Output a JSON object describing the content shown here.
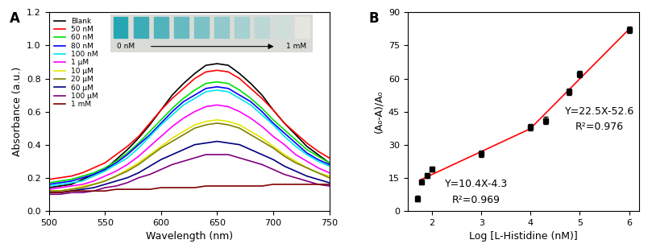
{
  "chart_data": [
    {
      "type": "line",
      "panel": "A",
      "xlabel": "Wavelength (nm)",
      "ylabel": "Absorbance (a.u.)",
      "x": [
        500,
        510,
        520,
        530,
        540,
        550,
        560,
        570,
        580,
        590,
        600,
        610,
        620,
        630,
        640,
        650,
        660,
        670,
        680,
        690,
        700,
        710,
        720,
        730,
        740,
        750
      ],
      "xlim": [
        500,
        750
      ],
      "xticks": [
        500,
        550,
        600,
        650,
        700,
        750
      ],
      "ylim": [
        0.0,
        1.2
      ],
      "yticks": [
        {
          "value": 0.0,
          "label": "0.0"
        },
        {
          "value": 0.2,
          "label": "0.2"
        },
        {
          "value": 0.4,
          "label": "0.4"
        },
        {
          "value": 0.6,
          "label": "0.6"
        },
        {
          "value": 0.8,
          "label": "0.8"
        },
        {
          "value": 1.0,
          "label": "1.0"
        },
        {
          "value": 1.2,
          "label": "1.2"
        }
      ],
      "legend": "upper left",
      "inset": {
        "start_label": "0 nM",
        "end_label": "1 mM"
      },
      "series": [
        {
          "name": "Blank",
          "color": "#000000",
          "values": [
            0.14,
            0.15,
            0.16,
            0.19,
            0.22,
            0.25,
            0.31,
            0.37,
            0.44,
            0.52,
            0.61,
            0.7,
            0.77,
            0.83,
            0.88,
            0.89,
            0.88,
            0.83,
            0.77,
            0.7,
            0.61,
            0.53,
            0.46,
            0.39,
            0.34,
            0.29
          ]
        },
        {
          "name": "50 nM",
          "color": "#ff0000",
          "values": [
            0.19,
            0.2,
            0.21,
            0.23,
            0.26,
            0.29,
            0.34,
            0.39,
            0.45,
            0.53,
            0.61,
            0.68,
            0.74,
            0.8,
            0.84,
            0.85,
            0.84,
            0.8,
            0.74,
            0.68,
            0.61,
            0.53,
            0.47,
            0.41,
            0.36,
            0.32
          ]
        },
        {
          "name": "60 nM",
          "color": "#00e000",
          "values": [
            0.17,
            0.18,
            0.19,
            0.21,
            0.23,
            0.26,
            0.3,
            0.35,
            0.41,
            0.48,
            0.55,
            0.62,
            0.68,
            0.73,
            0.77,
            0.78,
            0.77,
            0.73,
            0.68,
            0.62,
            0.55,
            0.49,
            0.43,
            0.37,
            0.33,
            0.29
          ]
        },
        {
          "name": "80 nM",
          "color": "#0000ff",
          "values": [
            0.16,
            0.17,
            0.18,
            0.2,
            0.22,
            0.25,
            0.29,
            0.34,
            0.4,
            0.46,
            0.53,
            0.6,
            0.66,
            0.7,
            0.74,
            0.75,
            0.74,
            0.7,
            0.66,
            0.6,
            0.53,
            0.47,
            0.41,
            0.35,
            0.31,
            0.28
          ]
        },
        {
          "name": "100 nM",
          "color": "#00e5ee",
          "values": [
            0.15,
            0.16,
            0.17,
            0.18,
            0.21,
            0.24,
            0.28,
            0.32,
            0.38,
            0.45,
            0.52,
            0.58,
            0.64,
            0.68,
            0.72,
            0.73,
            0.72,
            0.68,
            0.64,
            0.58,
            0.52,
            0.45,
            0.39,
            0.34,
            0.3,
            0.27
          ]
        },
        {
          "name": "1 μM",
          "color": "#ff00ff",
          "values": [
            0.13,
            0.14,
            0.15,
            0.16,
            0.18,
            0.21,
            0.24,
            0.28,
            0.33,
            0.39,
            0.45,
            0.51,
            0.56,
            0.6,
            0.63,
            0.64,
            0.63,
            0.6,
            0.56,
            0.51,
            0.45,
            0.4,
            0.34,
            0.3,
            0.26,
            0.23
          ]
        },
        {
          "name": "10 μM",
          "color": "#e6e600",
          "values": [
            0.12,
            0.12,
            0.13,
            0.15,
            0.16,
            0.18,
            0.21,
            0.25,
            0.29,
            0.34,
            0.39,
            0.44,
            0.48,
            0.52,
            0.54,
            0.55,
            0.54,
            0.52,
            0.48,
            0.44,
            0.39,
            0.34,
            0.3,
            0.26,
            0.23,
            0.21
          ]
        },
        {
          "name": "20 μM",
          "color": "#808000",
          "values": [
            0.12,
            0.12,
            0.13,
            0.14,
            0.16,
            0.18,
            0.21,
            0.24,
            0.28,
            0.33,
            0.38,
            0.42,
            0.46,
            0.5,
            0.52,
            0.53,
            0.52,
            0.5,
            0.46,
            0.42,
            0.38,
            0.33,
            0.29,
            0.26,
            0.23,
            0.2
          ]
        },
        {
          "name": "60 μM",
          "color": "#000080",
          "values": [
            0.11,
            0.11,
            0.12,
            0.13,
            0.14,
            0.16,
            0.18,
            0.2,
            0.23,
            0.27,
            0.31,
            0.34,
            0.37,
            0.4,
            0.41,
            0.42,
            0.41,
            0.4,
            0.37,
            0.34,
            0.31,
            0.27,
            0.24,
            0.21,
            0.19,
            0.17
          ]
        },
        {
          "name": "100 μM",
          "color": "#800080",
          "values": [
            0.1,
            0.1,
            0.11,
            0.11,
            0.12,
            0.14,
            0.15,
            0.17,
            0.2,
            0.22,
            0.25,
            0.28,
            0.3,
            0.32,
            0.34,
            0.34,
            0.34,
            0.32,
            0.3,
            0.28,
            0.25,
            0.22,
            0.2,
            0.18,
            0.16,
            0.15
          ]
        },
        {
          "name": "1 mM",
          "color": "#800000",
          "values": [
            0.11,
            0.11,
            0.12,
            0.12,
            0.12,
            0.12,
            0.13,
            0.13,
            0.13,
            0.13,
            0.14,
            0.14,
            0.14,
            0.14,
            0.15,
            0.15,
            0.15,
            0.15,
            0.15,
            0.15,
            0.16,
            0.16,
            0.16,
            0.16,
            0.16,
            0.16
          ]
        }
      ]
    },
    {
      "type": "scatter",
      "panel": "B",
      "xlabel": "Log [L-Histidine (nM)]",
      "ylabel": "(A₀-A)/A₀",
      "x": [
        1.7,
        1.78,
        1.9,
        2.0,
        3.0,
        4.0,
        4.3,
        4.78,
        5.0,
        6.0
      ],
      "values": [
        5.5,
        13,
        16,
        19,
        26,
        38,
        41,
        54,
        62,
        82
      ],
      "errors": [
        1.2,
        1.0,
        1.0,
        1.0,
        1.5,
        1.5,
        1.5,
        1.5,
        1.5,
        1.5
      ],
      "color": "#000000",
      "marker": "square",
      "xlim": [
        1.5,
        6.2
      ],
      "xticks": [
        2,
        3,
        4,
        5,
        6
      ],
      "ylim": [
        0,
        90
      ],
      "yticks": [
        0,
        15,
        30,
        45,
        60,
        75,
        90
      ],
      "fit_lines": [
        {
          "x": [
            1.75,
            4.0
          ],
          "values": [
            13.9,
            37.3
          ],
          "color": "#ff0000"
        },
        {
          "x": [
            4.0,
            6.0
          ],
          "values": [
            37.4,
            82.4
          ],
          "color": "#ff0000"
        }
      ],
      "annotations": [
        {
          "text": "Y=10.4X-4.3",
          "x": 2.9,
          "y": 12
        },
        {
          "text": "R²=0.969",
          "x": 2.9,
          "y": 5
        },
        {
          "text": "Y=22.5X-52.6",
          "x": 5.4,
          "y": 45
        },
        {
          "text": "R²=0.976",
          "x": 5.4,
          "y": 38
        }
      ]
    }
  ]
}
